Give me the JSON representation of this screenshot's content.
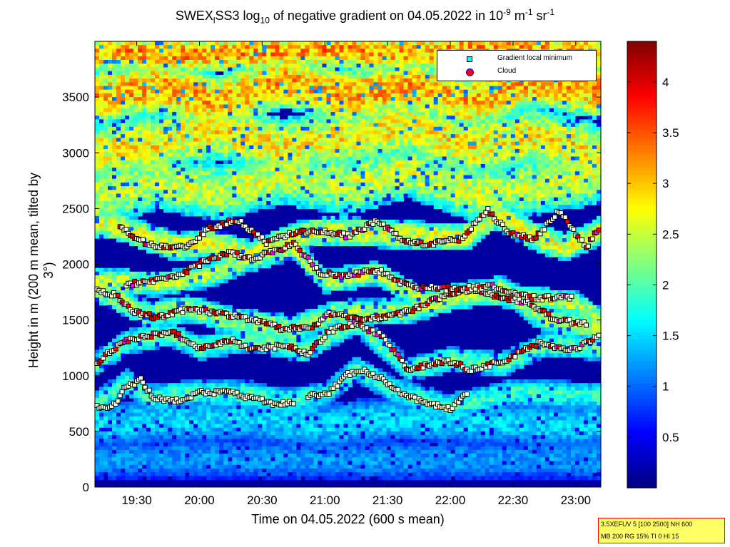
{
  "title": {
    "prefix": "SWEX",
    "sub1": "l",
    "mid": "SS3 log",
    "sub2": "10",
    "rest": " of negative gradient on 04.05.2022 in 10",
    "sup1": "-9",
    "unit1": " m",
    "sup2": "-1",
    "unit2": " sr",
    "sup3": "-1"
  },
  "infobox": {
    "line1": "3.5XEFUV 5 [100 2500] NH 600",
    "line2": "MB 200 RG 15% TI 0 HI 15"
  },
  "colors": {
    "local_min_marker": "#00ffff",
    "cloud_marker": "#ff0000",
    "background_low": "#00008f",
    "colormap": "jet"
  },
  "chart_data": {
    "type": "heatmap",
    "xlabel": "Time on 04.05.2022 (600 s mean)",
    "ylabel": "Height in m (200 m mean, tilted by 3°)",
    "x_ticks": [
      "19:30",
      "20:00",
      "20:30",
      "21:00",
      "21:30",
      "22:00",
      "22:30",
      "23:00"
    ],
    "x_tick_minutes": [
      1170,
      1200,
      1230,
      1260,
      1290,
      1320,
      1350,
      1380
    ],
    "xlim_minutes": [
      1150,
      1392
    ],
    "y_ticks": [
      0,
      500,
      1000,
      1500,
      2000,
      2500,
      3000,
      3500
    ],
    "ylim": [
      0,
      4000
    ],
    "colorbar": {
      "ticks": [
        0.5,
        1,
        1.5,
        2,
        2.5,
        3,
        3.5,
        4
      ],
      "range": [
        0,
        4.4
      ]
    },
    "legend": [
      {
        "name": "Gradient local minimum",
        "marker": "square"
      },
      {
        "name": "Cloud",
        "marker": "circle"
      }
    ],
    "legend_position": "top-right",
    "layers": [
      {
        "name": "surface",
        "pts": [
          [
            1150,
            250
          ],
          [
            1200,
            260
          ],
          [
            1250,
            250
          ],
          [
            1300,
            240
          ],
          [
            1350,
            250
          ],
          [
            1392,
            250
          ]
        ],
        "value": 1.3,
        "thickness": 180
      },
      {
        "name": "low",
        "pts": [
          [
            1150,
            560
          ],
          [
            1180,
            600
          ],
          [
            1220,
            620
          ],
          [
            1260,
            560
          ],
          [
            1300,
            620
          ],
          [
            1340,
            580
          ],
          [
            1392,
            560
          ]
        ],
        "value": 1.6,
        "thickness": 200
      },
      {
        "name": "l1",
        "pts": [
          [
            1150,
            720
          ],
          [
            1165,
            950
          ],
          [
            1175,
            800
          ],
          [
            1200,
            850
          ],
          [
            1225,
            830
          ],
          [
            1240,
            760
          ],
          [
            1260,
            830
          ],
          [
            1275,
            1060
          ],
          [
            1295,
            850
          ],
          [
            1320,
            720
          ],
          [
            1350,
            850
          ],
          [
            1392,
            820
          ]
        ],
        "value": 2.0,
        "thickness": 120
      },
      {
        "name": "l2",
        "pts": [
          [
            1150,
            1100
          ],
          [
            1165,
            1300
          ],
          [
            1185,
            1380
          ],
          [
            1200,
            1250
          ],
          [
            1225,
            1330
          ],
          [
            1250,
            1230
          ],
          [
            1275,
            1480
          ],
          [
            1300,
            1050
          ],
          [
            1320,
            1150
          ],
          [
            1345,
            1100
          ],
          [
            1365,
            1280
          ],
          [
            1392,
            1250
          ]
        ],
        "value": 2.2,
        "thickness": 110
      },
      {
        "name": "l3",
        "pts": [
          [
            1150,
            1780
          ],
          [
            1160,
            1700
          ],
          [
            1175,
            1550
          ],
          [
            1195,
            1600
          ],
          [
            1215,
            1500
          ],
          [
            1245,
            1420
          ],
          [
            1265,
            1560
          ],
          [
            1300,
            1580
          ],
          [
            1320,
            1700
          ],
          [
            1345,
            1780
          ],
          [
            1365,
            1500
          ],
          [
            1392,
            1420
          ]
        ],
        "value": 2.5,
        "thickness": 120
      },
      {
        "name": "l4",
        "pts": [
          [
            1160,
            1850
          ],
          [
            1180,
            1820
          ],
          [
            1205,
            1900
          ],
          [
            1225,
            2050
          ],
          [
            1245,
            2150
          ],
          [
            1260,
            1850
          ],
          [
            1285,
            1920
          ],
          [
            1310,
            1650
          ],
          [
            1335,
            1750
          ],
          [
            1355,
            1700
          ],
          [
            1380,
            1650
          ],
          [
            1392,
            1500
          ]
        ],
        "value": 2.6,
        "thickness": 110
      },
      {
        "name": "l5",
        "pts": [
          [
            1160,
            2350
          ],
          [
            1175,
            2250
          ],
          [
            1190,
            2150
          ],
          [
            1205,
            2200
          ],
          [
            1225,
            2080
          ],
          [
            1245,
            2250
          ],
          [
            1262,
            2300
          ],
          [
            1285,
            2280
          ],
          [
            1310,
            2250
          ],
          [
            1328,
            2250
          ],
          [
            1342,
            2450
          ],
          [
            1360,
            2250
          ],
          [
            1375,
            2150
          ],
          [
            1392,
            2300
          ]
        ],
        "value": 2.8,
        "thickness": 130
      },
      {
        "name": "u1",
        "pts": [
          [
            1150,
            2600
          ],
          [
            1180,
            2750
          ],
          [
            1210,
            2650
          ],
          [
            1240,
            2800
          ],
          [
            1270,
            2700
          ],
          [
            1300,
            2850
          ],
          [
            1330,
            2650
          ],
          [
            1360,
            2700
          ],
          [
            1392,
            2800
          ]
        ],
        "value": 2.7,
        "thickness": 260
      },
      {
        "name": "u2",
        "pts": [
          [
            1150,
            3000
          ],
          [
            1180,
            3100
          ],
          [
            1210,
            3200
          ],
          [
            1240,
            3050
          ],
          [
            1270,
            3150
          ],
          [
            1300,
            3250
          ],
          [
            1330,
            3050
          ],
          [
            1360,
            3150
          ],
          [
            1392,
            3000
          ]
        ],
        "value": 3.0,
        "thickness": 260
      },
      {
        "name": "u3",
        "pts": [
          [
            1150,
            3500
          ],
          [
            1180,
            3600
          ],
          [
            1210,
            3450
          ],
          [
            1240,
            3650
          ],
          [
            1270,
            3500
          ],
          [
            1300,
            3600
          ],
          [
            1330,
            3450
          ],
          [
            1360,
            3650
          ],
          [
            1392,
            3550
          ]
        ],
        "value": 3.3,
        "thickness": 250
      },
      {
        "name": "top",
        "pts": [
          [
            1150,
            3900
          ],
          [
            1200,
            3880
          ],
          [
            1250,
            3920
          ],
          [
            1300,
            3900
          ],
          [
            1350,
            3950
          ],
          [
            1392,
            3900
          ]
        ],
        "value": 3.4,
        "thickness": 160
      }
    ],
    "marker_tracks": [
      {
        "pts": [
          [
            1150,
            720
          ],
          [
            1158,
            710
          ],
          [
            1165,
            900
          ],
          [
            1172,
            960
          ],
          [
            1178,
            800
          ],
          [
            1190,
            770
          ],
          [
            1200,
            850
          ],
          [
            1215,
            850
          ],
          [
            1228,
            780
          ],
          [
            1236,
            750
          ],
          [
            1245,
            760
          ]
        ],
        "cloud": false
      },
      {
        "pts": [
          [
            1252,
            820
          ],
          [
            1262,
            850
          ],
          [
            1270,
            1000
          ],
          [
            1278,
            1060
          ],
          [
            1288,
            960
          ],
          [
            1295,
            860
          ],
          [
            1305,
            780
          ],
          [
            1320,
            700
          ],
          [
            1328,
            840
          ]
        ],
        "cloud": false
      },
      {
        "pts": [
          [
            1150,
            1100
          ],
          [
            1162,
            1290
          ],
          [
            1175,
            1360
          ],
          [
            1188,
            1380
          ],
          [
            1200,
            1250
          ],
          [
            1215,
            1320
          ],
          [
            1225,
            1230
          ],
          [
            1240,
            1270
          ],
          [
            1252,
            1200
          ],
          [
            1262,
            1400
          ],
          [
            1275,
            1470
          ],
          [
            1288,
            1350
          ],
          [
            1300,
            1050
          ],
          [
            1318,
            1140
          ],
          [
            1330,
            1050
          ],
          [
            1345,
            1130
          ],
          [
            1362,
            1290
          ],
          [
            1380,
            1230
          ],
          [
            1392,
            1380
          ]
        ],
        "cloud": true
      },
      {
        "pts": [
          [
            1150,
            1780
          ],
          [
            1160,
            1720
          ],
          [
            1168,
            1580
          ],
          [
            1180,
            1520
          ],
          [
            1195,
            1600
          ],
          [
            1210,
            1560
          ],
          [
            1225,
            1500
          ],
          [
            1240,
            1420
          ],
          [
            1255,
            1450
          ],
          [
            1262,
            1560
          ],
          [
            1280,
            1500
          ],
          [
            1300,
            1580
          ],
          [
            1315,
            1700
          ],
          [
            1330,
            1780
          ],
          [
            1345,
            1700
          ],
          [
            1358,
            1650
          ],
          [
            1370,
            1500
          ],
          [
            1385,
            1470
          ]
        ],
        "cloud": true
      },
      {
        "pts": [
          [
            1165,
            1820
          ],
          [
            1178,
            1850
          ],
          [
            1190,
            1900
          ],
          [
            1205,
            2050
          ],
          [
            1215,
            2100
          ],
          [
            1225,
            2050
          ],
          [
            1245,
            2180
          ],
          [
            1258,
            1920
          ],
          [
            1270,
            1900
          ],
          [
            1285,
            1950
          ],
          [
            1300,
            1800
          ],
          [
            1318,
            1780
          ],
          [
            1340,
            1800
          ],
          [
            1360,
            1700
          ],
          [
            1378,
            1700
          ]
        ],
        "cloud": true
      },
      {
        "pts": [
          [
            1162,
            2350
          ],
          [
            1170,
            2230
          ],
          [
            1180,
            2150
          ],
          [
            1195,
            2160
          ],
          [
            1205,
            2320
          ],
          [
            1218,
            2400
          ],
          [
            1232,
            2200
          ],
          [
            1245,
            2280
          ],
          [
            1258,
            2300
          ],
          [
            1272,
            2250
          ],
          [
            1285,
            2400
          ],
          [
            1298,
            2200
          ],
          [
            1310,
            2180
          ],
          [
            1325,
            2230
          ],
          [
            1338,
            2480
          ],
          [
            1348,
            2280
          ],
          [
            1360,
            2220
          ],
          [
            1372,
            2480
          ],
          [
            1385,
            2150
          ],
          [
            1392,
            2350
          ]
        ],
        "cloud": true
      }
    ]
  }
}
